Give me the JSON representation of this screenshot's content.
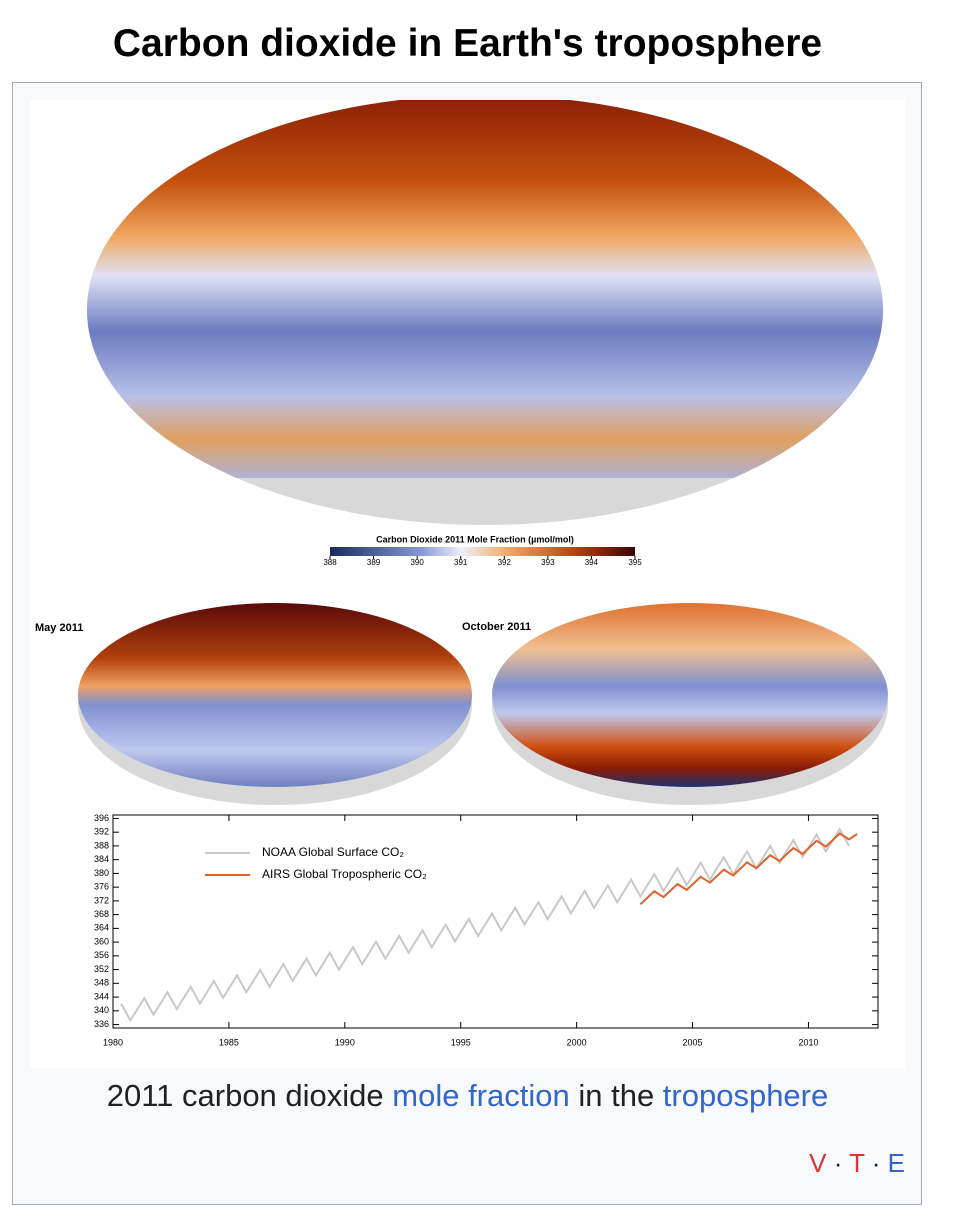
{
  "header": {
    "title": "Carbon dioxide in Earth's troposphere"
  },
  "figure": {
    "colorbar": {
      "title": "Carbon Dioxide 2011 Mole Fraction (µmol/mol)",
      "lim": [
        388,
        395
      ],
      "ticks": [
        388,
        389,
        390,
        391,
        392,
        393,
        394,
        395
      ]
    },
    "panel_labels": [
      "May 2011",
      "October 2011"
    ]
  },
  "chart_data": {
    "type": "line",
    "xlim": [
      1980,
      2013
    ],
    "ylim": [
      335,
      397
    ],
    "xticks": [
      1980,
      1985,
      1990,
      1995,
      2000,
      2005,
      2010
    ],
    "yticks": [
      336,
      340,
      344,
      348,
      352,
      356,
      360,
      364,
      368,
      372,
      376,
      380,
      384,
      388,
      392,
      396
    ],
    "series": [
      {
        "name": "NOAA Global Surface CO₂",
        "color": "#c8c8c8",
        "x": [
          1980.35,
          1980.75,
          1981.35,
          1981.75,
          1982.35,
          1982.75,
          1983.35,
          1983.75,
          1984.35,
          1984.75,
          1985.35,
          1985.75,
          1986.35,
          1986.75,
          1987.35,
          1987.75,
          1988.35,
          1988.75,
          1989.35,
          1989.75,
          1990.35,
          1990.75,
          1991.35,
          1991.75,
          1992.35,
          1992.75,
          1993.35,
          1993.75,
          1994.35,
          1994.75,
          1995.35,
          1995.75,
          1996.35,
          1996.75,
          1997.35,
          1997.75,
          1998.35,
          1998.75,
          1999.35,
          1999.75,
          2000.35,
          2000.75,
          2001.35,
          2001.75,
          2002.35,
          2002.75,
          2003.35,
          2003.75,
          2004.35,
          2004.75,
          2005.35,
          2005.75,
          2006.35,
          2006.75,
          2007.35,
          2007.75,
          2008.35,
          2008.75,
          2009.35,
          2009.75,
          2010.35,
          2010.75,
          2011.35,
          2011.75
        ],
        "values": [
          342.1,
          337.2,
          343.7,
          338.9,
          345.4,
          340.5,
          347.0,
          342.1,
          348.7,
          343.8,
          350.3,
          345.4,
          351.9,
          347.0,
          353.6,
          348.7,
          355.2,
          350.3,
          356.9,
          352.0,
          358.5,
          353.6,
          360.1,
          355.2,
          361.8,
          356.9,
          363.4,
          358.5,
          365.1,
          360.2,
          366.7,
          361.8,
          368.3,
          363.4,
          370.0,
          365.1,
          371.6,
          366.7,
          373.3,
          368.4,
          374.9,
          370.0,
          376.5,
          371.6,
          378.2,
          373.3,
          379.8,
          374.9,
          381.5,
          376.6,
          383.1,
          378.2,
          384.7,
          379.8,
          386.4,
          381.5,
          388.0,
          383.1,
          389.7,
          384.8,
          391.3,
          386.4,
          392.9,
          388.0
        ]
      },
      {
        "name": "AIRS Global Tropospheric CO₂",
        "color": "#e0622a",
        "x": [
          2002.75,
          2003.35,
          2003.75,
          2004.35,
          2004.75,
          2005.35,
          2005.75,
          2006.35,
          2006.75,
          2007.35,
          2007.75,
          2008.35,
          2008.75,
          2009.35,
          2009.75,
          2010.35,
          2010.75,
          2011.35,
          2011.75,
          2012.1
        ],
        "values": [
          371.0,
          374.8,
          373.1,
          376.9,
          375.2,
          379.0,
          377.3,
          381.1,
          379.4,
          383.2,
          381.5,
          385.3,
          383.6,
          387.4,
          385.7,
          389.5,
          387.8,
          391.6,
          389.9,
          391.5
        ]
      }
    ]
  },
  "caption": {
    "text_1": "2011 carbon dioxide ",
    "link_1": "mole fraction",
    "text_2": " in the ",
    "link_2": "troposphere"
  },
  "navbox": {
    "v": "V",
    "t": "T",
    "e": "E"
  }
}
